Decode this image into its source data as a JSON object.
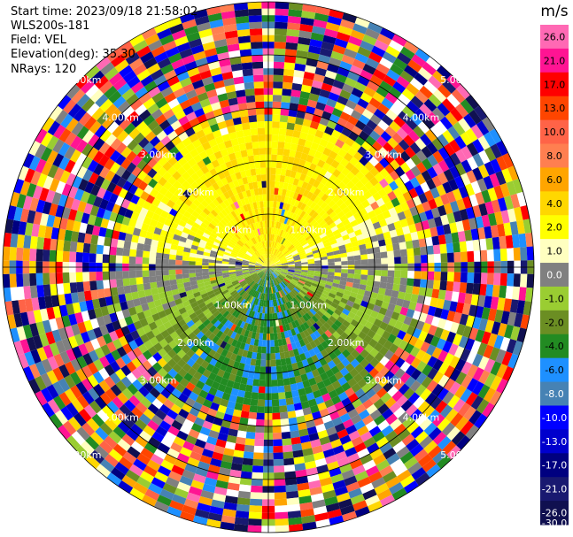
{
  "header": {
    "start_time": "Start time: 2023/09/18 21:58:02",
    "instrument": "WLS200s-181",
    "field": "Field: VEL",
    "elevation": "Elevation(deg): 35.30",
    "nrays": "NRays: 120"
  },
  "chart_data": {
    "type": "heatmap",
    "projection": "polar-ppi",
    "field": "VEL",
    "units": "m/s",
    "n_rays": 120,
    "range_rings_km": [
      1.0,
      2.0,
      3.0,
      4.0,
      5.0
    ],
    "range_ring_labels": [
      "1.00km",
      "2.00km",
      "3.00km",
      "4.00km",
      "5.00km"
    ],
    "max_range_km": 5.0,
    "colorbar_ticks": [
      26.0,
      21.0,
      17.0,
      13.0,
      10.0,
      8.0,
      6.0,
      4.0,
      2.0,
      1.0,
      0.0,
      -1.0,
      -2.0,
      -4.0,
      -6.0,
      -8.0,
      -10.0,
      -13.0,
      -17.0,
      -21.0,
      -26.0,
      -30.0
    ],
    "colorbar_tick_labels": [
      "26.0",
      "21.0",
      "17.0",
      "13.0",
      "10.0",
      "8.0",
      "6.0",
      "4.0",
      "2.0",
      "1.0",
      "0.0",
      "-1.0",
      "-2.0",
      "-4.0",
      "-6.0",
      "-8.0",
      "-10.0",
      "-13.0",
      "-17.0",
      "-21.0",
      "-26.0",
      "-30.0"
    ],
    "colorbar_colors": [
      "#ff69b4",
      "#ff1493",
      "#ff0000",
      "#ff4500",
      "#ff6347",
      "#ff7f50",
      "#ffa500",
      "#ffd700",
      "#ffff00",
      "#ffffc0",
      "#808080",
      "#9acd32",
      "#6b8e23",
      "#228b22",
      "#1e90ff",
      "#4682b4",
      "#0000ff",
      "#0000cd",
      "#000080",
      "#191970",
      "#101050"
    ],
    "colorbar_label": "m/s",
    "pattern_notes": "Near field (<~2.5km): positive velocities (yellow/orange) to the north, negative velocities (green) to the south, gray near zero along east-west axis; far field: noisy random colors."
  }
}
